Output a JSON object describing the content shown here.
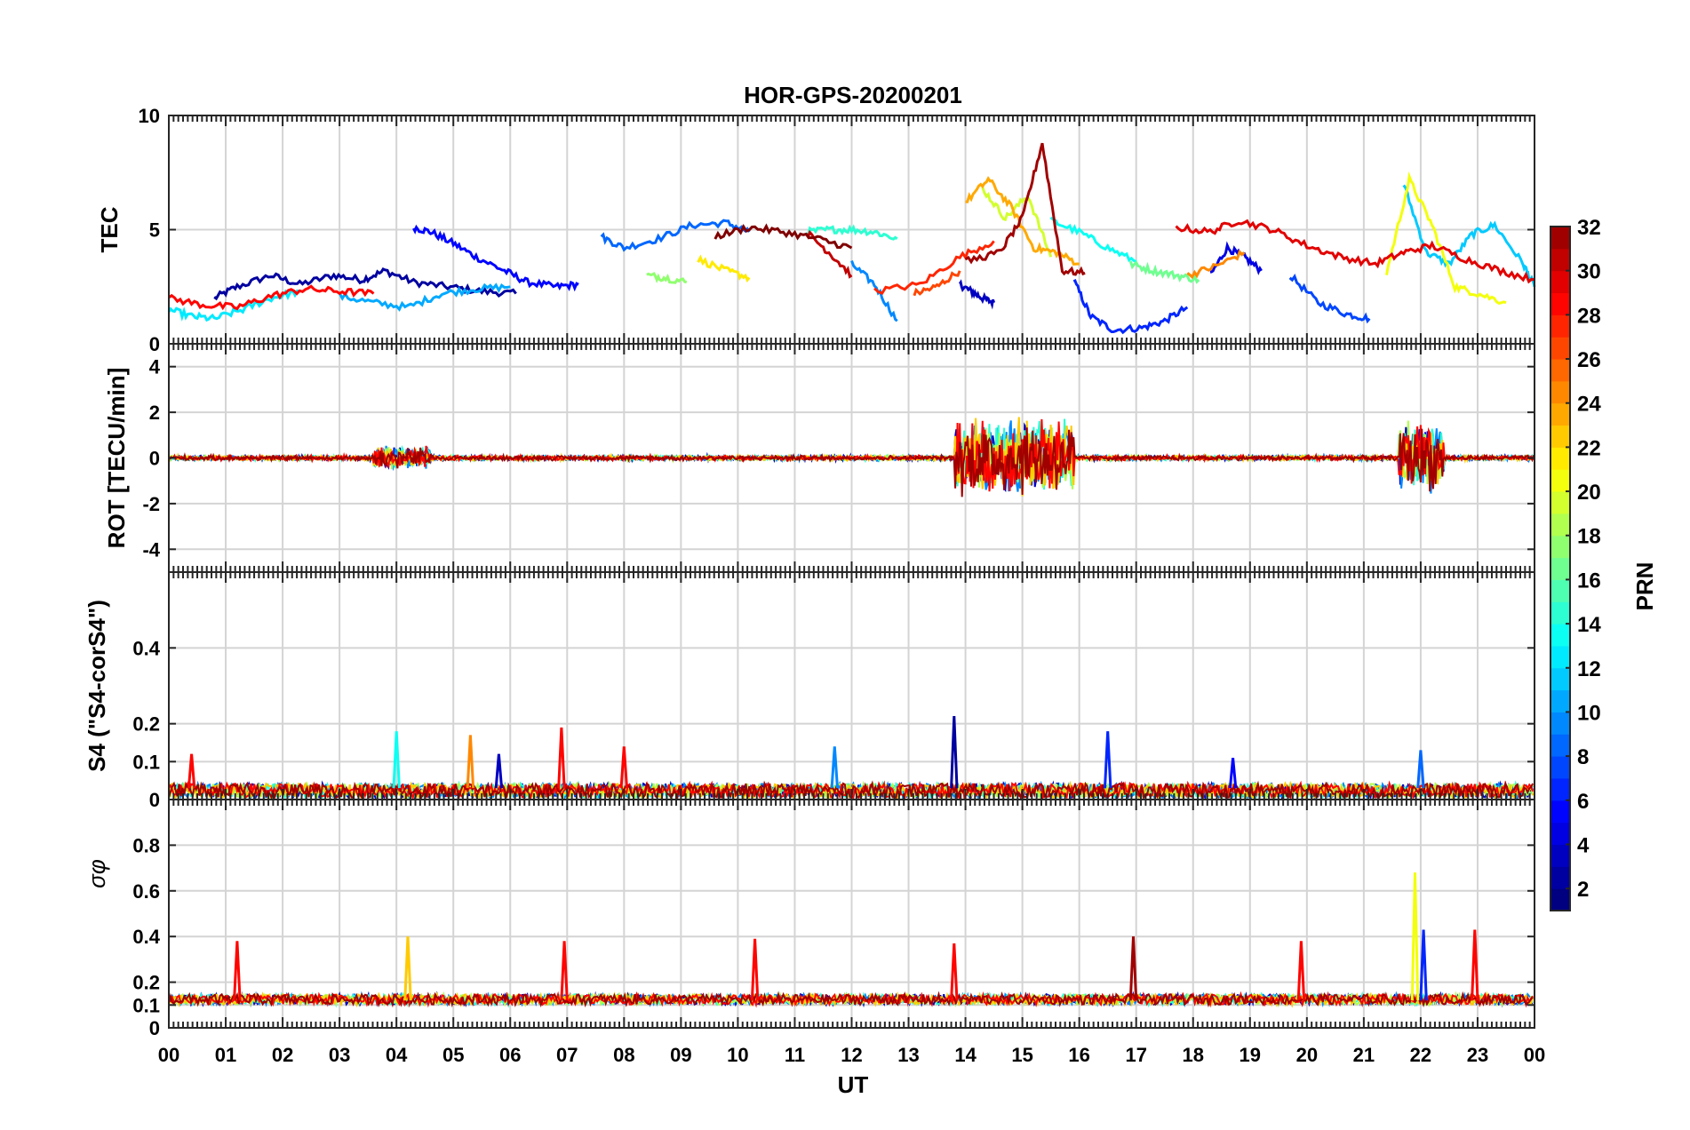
{
  "figure": {
    "title": "HOR-GPS-20200201",
    "xlabel": "UT",
    "x_tick_labels": [
      "00",
      "01",
      "02",
      "03",
      "04",
      "05",
      "06",
      "07",
      "08",
      "09",
      "10",
      "11",
      "12",
      "13",
      "14",
      "15",
      "16",
      "17",
      "18",
      "19",
      "20",
      "21",
      "22",
      "23",
      "00"
    ]
  },
  "colorbar": {
    "label": "PRN",
    "range": [
      1,
      32
    ],
    "ticks": [
      2,
      4,
      6,
      8,
      10,
      12,
      14,
      16,
      18,
      20,
      22,
      24,
      26,
      28,
      30,
      32
    ],
    "colormap": "jet"
  },
  "chart_data": [
    {
      "type": "line",
      "panel": "tec",
      "ylabel": "TEC",
      "ylim": [
        0,
        10
      ],
      "yticks": [
        0,
        5,
        10
      ],
      "xlim_hours": [
        0,
        24
      ],
      "grid": true,
      "series": [
        {
          "prn": 2,
          "x": [
            0.8,
            1.2,
            1.8,
            2.3,
            2.9,
            3.4,
            3.8,
            4.3,
            4.9,
            5.5,
            6.1
          ],
          "y": [
            2.0,
            2.5,
            3.0,
            2.6,
            3.0,
            2.8,
            3.2,
            2.7,
            2.5,
            2.3,
            2.2
          ]
        },
        {
          "prn": 3,
          "x": [
            13.9,
            14.1,
            14.3,
            14.5
          ],
          "y": [
            2.6,
            2.3,
            2.0,
            1.8
          ]
        },
        {
          "prn": 5,
          "x": [
            4.3,
            4.6,
            5.0,
            5.4,
            5.9,
            6.3,
            6.8,
            7.2
          ],
          "y": [
            5.1,
            4.9,
            4.4,
            3.8,
            3.2,
            2.7,
            2.5,
            2.6
          ]
        },
        {
          "prn": 6,
          "x": [
            15.9,
            16.2,
            16.6,
            17.1,
            17.5,
            17.9
          ],
          "y": [
            2.8,
            1.2,
            0.6,
            0.7,
            1.0,
            1.6
          ]
        },
        {
          "prn": 4,
          "x": [
            18.3,
            18.6,
            18.9,
            19.2
          ],
          "y": [
            3.0,
            4.2,
            3.8,
            3.2
          ]
        },
        {
          "prn": 7,
          "x": [
            19.7,
            20.2,
            20.7,
            21.1
          ],
          "y": [
            3.0,
            1.8,
            1.3,
            1.1
          ]
        },
        {
          "prn": 8,
          "x": [
            7.6,
            8.0,
            8.6,
            9.2,
            9.8,
            10.2
          ],
          "y": [
            4.7,
            4.2,
            4.6,
            5.2,
            5.3,
            4.9
          ]
        },
        {
          "prn": 9,
          "x": [
            12.0,
            12.4,
            12.8
          ],
          "y": [
            3.5,
            2.6,
            1.0
          ]
        },
        {
          "prn": 10,
          "x": [
            3.0,
            3.6,
            4.2,
            4.8,
            5.4,
            6.0
          ],
          "y": [
            2.1,
            1.8,
            1.6,
            2.2,
            2.4,
            2.5
          ]
        },
        {
          "prn": 11,
          "x": [
            21.7,
            22.1,
            22.5,
            22.9,
            23.3,
            23.8,
            24.0
          ],
          "y": [
            7.0,
            4.0,
            3.5,
            4.8,
            5.2,
            3.5,
            2.5
          ]
        },
        {
          "prn": 12,
          "x": [
            0.0,
            0.4,
            0.8,
            1.3,
            1.8,
            2.3
          ],
          "y": [
            1.5,
            1.2,
            1.1,
            1.5,
            2.0,
            2.3
          ]
        },
        {
          "prn": 13,
          "x": [
            15.5,
            16.0,
            16.5,
            17.0
          ],
          "y": [
            5.4,
            4.9,
            4.2,
            3.6
          ]
        },
        {
          "prn": 14,
          "x": [
            11.2,
            11.6,
            12.0,
            12.4,
            12.8
          ],
          "y": [
            4.9,
            5.0,
            5.0,
            4.9,
            4.6
          ]
        },
        {
          "prn": 16,
          "x": [
            16.9,
            17.3,
            17.7,
            18.1
          ],
          "y": [
            3.5,
            3.2,
            3.0,
            2.8
          ]
        },
        {
          "prn": 17,
          "x": [
            8.4,
            8.7,
            9.1
          ],
          "y": [
            3.0,
            2.9,
            2.7
          ]
        },
        {
          "prn": 19,
          "x": [
            14.3,
            14.7,
            15.1,
            15.5
          ],
          "y": [
            6.8,
            5.5,
            6.5,
            3.8
          ]
        },
        {
          "prn": 20,
          "x": [
            21.4,
            21.8,
            22.2,
            22.6,
            23.0,
            23.5
          ],
          "y": [
            3.1,
            7.2,
            5.2,
            2.5,
            2.2,
            1.8
          ]
        },
        {
          "prn": 21,
          "x": [
            9.3,
            9.8,
            10.2
          ],
          "y": [
            3.7,
            3.2,
            2.9
          ]
        },
        {
          "prn": 23,
          "x": [
            14.0,
            14.4,
            14.8,
            15.2,
            15.6,
            16.0
          ],
          "y": [
            6.2,
            7.2,
            6.0,
            4.2,
            4.0,
            3.5
          ]
        },
        {
          "prn": 24,
          "x": [
            17.9,
            18.4,
            18.9
          ],
          "y": [
            3.0,
            3.4,
            4.0
          ]
        },
        {
          "prn": 26,
          "x": [
            13.1,
            13.5,
            13.9
          ],
          "y": [
            2.2,
            2.5,
            3.2
          ]
        },
        {
          "prn": 27,
          "x": [
            12.4,
            13.2,
            13.9,
            14.5
          ],
          "y": [
            2.3,
            2.6,
            3.8,
            4.5
          ]
        },
        {
          "prn": 28,
          "x": [
            0.0,
            0.6,
            1.2,
            1.8,
            2.4,
            3.0,
            3.6
          ],
          "y": [
            2.0,
            1.7,
            1.6,
            2.1,
            2.4,
            2.3,
            2.2
          ]
        },
        {
          "prn": 29,
          "x": [
            17.7,
            18.3,
            18.8,
            19.4,
            20.0,
            20.6,
            21.2,
            21.7,
            22.2,
            22.8,
            23.4,
            24.0
          ],
          "y": [
            5.1,
            4.9,
            5.4,
            5.0,
            4.3,
            3.8,
            3.5,
            4.0,
            4.3,
            3.7,
            3.2,
            2.8
          ]
        },
        {
          "prn": 30,
          "x": [
            11.2,
            11.6,
            12.0
          ],
          "y": [
            4.9,
            4.0,
            3.0
          ]
        },
        {
          "prn": 31,
          "x": [
            14.0,
            14.6,
            15.0,
            15.35,
            15.7,
            16.1
          ],
          "y": [
            3.6,
            4.0,
            5.5,
            8.8,
            3.2,
            3.1
          ]
        },
        {
          "prn": 32,
          "x": [
            9.6,
            10.2,
            10.8,
            11.4,
            12.0
          ],
          "y": [
            4.7,
            5.1,
            4.9,
            4.6,
            4.2
          ]
        }
      ]
    },
    {
      "type": "line",
      "panel": "rot",
      "ylabel": "ROT [TECU/min]",
      "ylim": [
        -5,
        5
      ],
      "yticks": [
        -4,
        -2,
        0,
        2,
        4
      ],
      "xlim_hours": [
        0,
        24
      ],
      "grid": true,
      "description_of_bursts": "near-zero background noise with bursts around 03.5-04.5 UT, 13.8-15.8 UT and 21.6-22.4 UT",
      "bursts": [
        {
          "x_start": 3.6,
          "x_end": 4.6,
          "amplitude": 1.0
        },
        {
          "x_start": 13.8,
          "x_end": 15.9,
          "amplitude": 3.5
        },
        {
          "x_start": 21.6,
          "x_end": 22.4,
          "amplitude": 3.0
        }
      ]
    },
    {
      "type": "line",
      "panel": "s4",
      "ylabel": "S4 (\"S4-corS4\")",
      "ylim": [
        0,
        0.6
      ],
      "yticks": [
        0,
        0.1,
        0.2,
        0.4
      ],
      "xlim_hours": [
        0,
        24
      ],
      "grid": true,
      "peaks": [
        {
          "x": 0.4,
          "y": 0.12,
          "prn": 28
        },
        {
          "x": 4.0,
          "y": 0.18,
          "prn": 13
        },
        {
          "x": 5.3,
          "y": 0.17,
          "prn": 24
        },
        {
          "x": 5.8,
          "y": 0.12,
          "prn": 3
        },
        {
          "x": 6.9,
          "y": 0.19,
          "prn": 28
        },
        {
          "x": 8.0,
          "y": 0.14,
          "prn": 28
        },
        {
          "x": 11.7,
          "y": 0.14,
          "prn": 9
        },
        {
          "x": 13.8,
          "y": 0.22,
          "prn": 2
        },
        {
          "x": 16.5,
          "y": 0.18,
          "prn": 6
        },
        {
          "x": 18.7,
          "y": 0.11,
          "prn": 5
        },
        {
          "x": 22.0,
          "y": 0.13,
          "prn": 8
        }
      ]
    },
    {
      "type": "line",
      "panel": "sigma_phi",
      "ylabel": "σφ",
      "ylim": [
        0,
        1.0
      ],
      "yticks": [
        0,
        0.1,
        0.2,
        0.4,
        0.6,
        0.8
      ],
      "xlim_hours": [
        0,
        24
      ],
      "grid": true,
      "peaks": [
        {
          "x": 1.2,
          "y": 0.38,
          "prn": 28
        },
        {
          "x": 4.2,
          "y": 0.4,
          "prn": 22
        },
        {
          "x": 6.95,
          "y": 0.38,
          "prn": 28
        },
        {
          "x": 10.3,
          "y": 0.39,
          "prn": 28
        },
        {
          "x": 13.8,
          "y": 0.37,
          "prn": 28
        },
        {
          "x": 16.95,
          "y": 0.4,
          "prn": 31
        },
        {
          "x": 19.9,
          "y": 0.38,
          "prn": 28
        },
        {
          "x": 21.9,
          "y": 0.68,
          "prn": 20
        },
        {
          "x": 22.05,
          "y": 0.43,
          "prn": 6
        },
        {
          "x": 22.95,
          "y": 0.43,
          "prn": 28
        }
      ]
    }
  ]
}
